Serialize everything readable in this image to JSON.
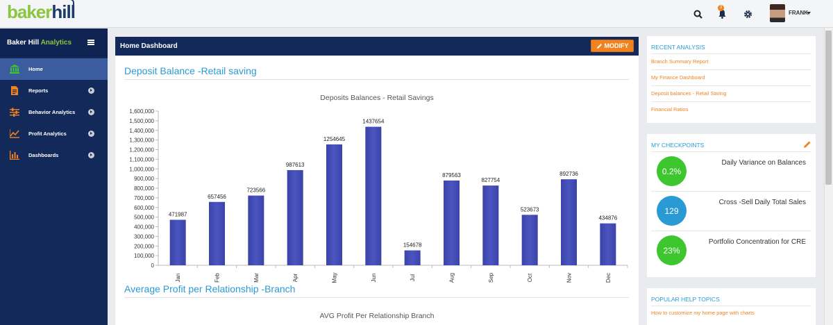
{
  "brand": {
    "logo_part1": "baker",
    "logo_part2": "hill",
    "color_green": "#8cc63f",
    "color_navy": "#13295a",
    "color_orange": "#f0831e",
    "color_blue": "#2a9ad5"
  },
  "topbar": {
    "icons": [
      "search-icon",
      "bell-icon",
      "gear-icon"
    ],
    "notification_count": "3",
    "user_name": "FRANK"
  },
  "sidebar": {
    "title_part1": "Baker Hill",
    "title_part2": "Analytics",
    "items": [
      {
        "label": "Home",
        "icon": "bank-icon",
        "active": true
      },
      {
        "label": "Reports",
        "icon": "report-icon",
        "active": false
      },
      {
        "label": "Behavior Analytics",
        "icon": "sliders-icon",
        "active": false
      },
      {
        "label": "Profit Analytics",
        "icon": "line-chart-icon",
        "active": false
      },
      {
        "label": "Dashboards",
        "icon": "bar-chart-icon",
        "active": false
      }
    ]
  },
  "main": {
    "panel_title": "Home Dashboard",
    "modify_label": "MODIFY",
    "section1_title": "Deposit Balance -Retail saving",
    "section2_title": "Average Profit per Relationship -Branch",
    "chart2_title": "AVG Profit Per Relationship Branch"
  },
  "chart_data": {
    "type": "bar",
    "title": "Deposits Balances - Retail Savings",
    "categories": [
      "Jan",
      "Feb",
      "Mar",
      "Apr",
      "May",
      "Jun",
      "Jul",
      "Aug",
      "Sep",
      "Oct",
      "Nov",
      "Dec"
    ],
    "values": [
      471987,
      657456,
      723566,
      987613,
      1254645,
      1437654,
      154678,
      879563,
      827754,
      523673,
      892736,
      434876
    ],
    "ylim": [
      0,
      1600000
    ],
    "yticks": [
      "0",
      "100,000",
      "200,000",
      "300,000",
      "400,000",
      "500,000",
      "600,000",
      "700,000",
      "800,000",
      "900,000",
      "1,000,000",
      "1,100,000",
      "1,200,000",
      "1,300,000",
      "1,400,000",
      "1,500,000",
      "1,600,000"
    ],
    "xlabel": "",
    "ylabel": "",
    "bar_color": "#4b55c0",
    "grid": false
  },
  "recent_analysis": {
    "title": "RECENT ANALYSIS",
    "links": [
      "Branch Summary Report",
      "My Finance Dashboard",
      "Deposit balances - Retail Saving",
      "Financial Ratios"
    ]
  },
  "checkpoints": {
    "title": "MY CHECKPOINTS",
    "items": [
      {
        "value": "0.2%",
        "label": "Daily Variance on Balances",
        "color": "#3ec62f"
      },
      {
        "value": "129",
        "label": "Cross -Sell Daily Total Sales",
        "color": "#2a9ad5"
      },
      {
        "value": "23%",
        "label": "Portfolio Concentration for CRE",
        "color": "#3ec62f"
      }
    ]
  },
  "help": {
    "title": "POPULAR HELP TOPICS",
    "links": [
      "How to customize my home page with charts"
    ]
  }
}
